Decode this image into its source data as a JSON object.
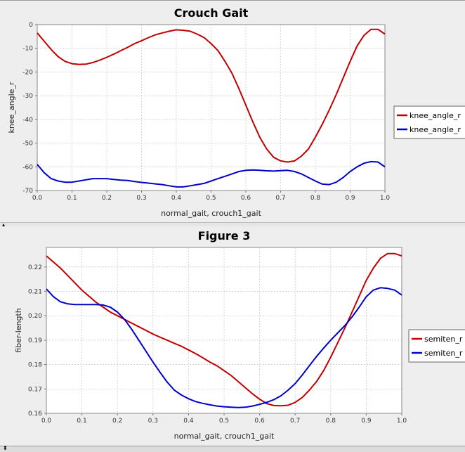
{
  "charts": [
    {
      "chart_data": {
        "type": "line",
        "title": "Crouch Gait",
        "xlabel": "normal_gait, crouch1_gait",
        "ylabel": "knee_angle_r",
        "xlim": [
          0,
          1.0
        ],
        "ylim": [
          -70,
          0
        ],
        "x_ticks": [
          "0.0",
          "0.1",
          "0.2",
          "0.3",
          "0.4",
          "0.5",
          "0.6",
          "0.7",
          "0.8",
          "0.9",
          "1.0"
        ],
        "y_ticks": [
          "0",
          "-10",
          "-20",
          "-30",
          "-40",
          "-50",
          "-60",
          "-70"
        ],
        "grid": true,
        "legend_position": "right",
        "legend": [
          "knee_angle_r",
          "knee_angle_r"
        ],
        "series": [
          {
            "name": "knee_angle_r",
            "color": "#c00000",
            "x": [
              0,
              0.02,
              0.04,
              0.06,
              0.08,
              0.1,
              0.12,
              0.14,
              0.16,
              0.18,
              0.2,
              0.22,
              0.24,
              0.26,
              0.28,
              0.3,
              0.32,
              0.34,
              0.36,
              0.38,
              0.4,
              0.42,
              0.44,
              0.46,
              0.48,
              0.5,
              0.52,
              0.54,
              0.56,
              0.58,
              0.6,
              0.62,
              0.64,
              0.66,
              0.68,
              0.7,
              0.72,
              0.74,
              0.76,
              0.78,
              0.8,
              0.82,
              0.84,
              0.86,
              0.88,
              0.9,
              0.92,
              0.94,
              0.96,
              0.98,
              1.0
            ],
            "y": [
              -3.5,
              -7,
              -10.5,
              -13.5,
              -15.5,
              -16.5,
              -16.8,
              -16.7,
              -16,
              -15,
              -13.8,
              -12.5,
              -11,
              -9.6,
              -8,
              -6.8,
              -5.5,
              -4.3,
              -3.5,
              -2.8,
              -2.2,
              -2.4,
              -2.8,
              -4,
              -5.5,
              -8,
              -11,
              -15.5,
              -20.5,
              -27,
              -34,
              -41,
              -47.5,
              -52.5,
              -56,
              -57.5,
              -58,
              -57.5,
              -55.5,
              -52.5,
              -47.5,
              -42,
              -36,
              -29.5,
              -22.5,
              -15.5,
              -9,
              -4.5,
              -2,
              -2,
              -4
            ]
          },
          {
            "name": "knee_angle_r",
            "color": "#0000c8",
            "x": [
              0,
              0.02,
              0.04,
              0.06,
              0.08,
              0.1,
              0.12,
              0.14,
              0.16,
              0.18,
              0.2,
              0.22,
              0.24,
              0.26,
              0.28,
              0.3,
              0.32,
              0.34,
              0.36,
              0.38,
              0.4,
              0.42,
              0.44,
              0.46,
              0.48,
              0.5,
              0.52,
              0.54,
              0.56,
              0.58,
              0.6,
              0.62,
              0.64,
              0.66,
              0.68,
              0.7,
              0.72,
              0.74,
              0.76,
              0.78,
              0.8,
              0.82,
              0.84,
              0.86,
              0.88,
              0.9,
              0.92,
              0.94,
              0.96,
              0.98,
              1.0
            ],
            "y": [
              -59,
              -62.5,
              -65,
              -66,
              -66.5,
              -66.5,
              -66,
              -65.5,
              -65,
              -65,
              -65,
              -65.3,
              -65.6,
              -65.8,
              -66.2,
              -66.6,
              -66.9,
              -67.2,
              -67.5,
              -68,
              -68.5,
              -68.5,
              -68,
              -67.5,
              -67,
              -66,
              -65,
              -64,
              -63,
              -62,
              -61.5,
              -61.3,
              -61.5,
              -61.7,
              -61.8,
              -61.6,
              -61.5,
              -62,
              -63,
              -64.5,
              -66,
              -67.3,
              -67.5,
              -66.5,
              -64.5,
              -62,
              -60,
              -58.5,
              -57.8,
              -58,
              -60
            ]
          }
        ]
      }
    },
    {
      "chart_data": {
        "type": "line",
        "title": "Figure 3",
        "xlabel": "normal_gait, crouch1_gait",
        "ylabel": "fiber-length",
        "xlim": [
          0,
          1.0
        ],
        "ylim": [
          0.16,
          0.228
        ],
        "x_ticks": [
          "0.0",
          "0.1",
          "0.2",
          "0.3",
          "0.4",
          "0.5",
          "0.6",
          "0.7",
          "0.8",
          "0.9",
          "1.0"
        ],
        "y_ticks": [
          "0.16",
          "0.17",
          "0.18",
          "0.19",
          "0.20",
          "0.21",
          "0.22"
        ],
        "grid": true,
        "legend_position": "right",
        "legend": [
          "semiten_r",
          "semiten_r"
        ],
        "series": [
          {
            "name": "semiten_r",
            "color": "#c00000",
            "x": [
              0,
              0.02,
              0.04,
              0.06,
              0.08,
              0.1,
              0.12,
              0.14,
              0.16,
              0.18,
              0.2,
              0.22,
              0.24,
              0.26,
              0.28,
              0.3,
              0.32,
              0.34,
              0.36,
              0.38,
              0.4,
              0.42,
              0.44,
              0.46,
              0.48,
              0.5,
              0.52,
              0.54,
              0.56,
              0.58,
              0.6,
              0.62,
              0.64,
              0.66,
              0.68,
              0.7,
              0.72,
              0.74,
              0.76,
              0.78,
              0.8,
              0.82,
              0.84,
              0.86,
              0.88,
              0.9,
              0.92,
              0.94,
              0.96,
              0.98,
              1.0
            ],
            "y": [
              0.2245,
              0.222,
              0.2195,
              0.2165,
              0.2135,
              0.2105,
              0.208,
              0.2055,
              0.2035,
              0.2015,
              0.2,
              0.1985,
              0.197,
              0.1955,
              0.194,
              0.1925,
              0.1912,
              0.19,
              0.1887,
              0.1875,
              0.186,
              0.1845,
              0.1828,
              0.181,
              0.1795,
              0.1775,
              0.1755,
              0.173,
              0.1705,
              0.168,
              0.1658,
              0.164,
              0.1632,
              0.1631,
              0.1633,
              0.1645,
              0.1665,
              0.1695,
              0.173,
              0.1775,
              0.183,
              0.189,
              0.195,
              0.2015,
              0.208,
              0.2145,
              0.2195,
              0.2235,
              0.2255,
              0.2255,
              0.2245
            ]
          },
          {
            "name": "semiten_r",
            "color": "#0000c8",
            "x": [
              0,
              0.02,
              0.04,
              0.06,
              0.08,
              0.1,
              0.12,
              0.14,
              0.16,
              0.18,
              0.2,
              0.22,
              0.24,
              0.26,
              0.28,
              0.3,
              0.32,
              0.34,
              0.36,
              0.38,
              0.4,
              0.42,
              0.44,
              0.46,
              0.48,
              0.5,
              0.52,
              0.54,
              0.56,
              0.58,
              0.6,
              0.62,
              0.64,
              0.66,
              0.68,
              0.7,
              0.72,
              0.74,
              0.76,
              0.78,
              0.8,
              0.82,
              0.84,
              0.86,
              0.88,
              0.9,
              0.92,
              0.94,
              0.96,
              0.98,
              1.0
            ],
            "y": [
              0.211,
              0.2078,
              0.2057,
              0.2049,
              0.2046,
              0.2046,
              0.2046,
              0.2046,
              0.2044,
              0.2035,
              0.2015,
              0.1985,
              0.1945,
              0.19,
              0.1855,
              0.181,
              0.1768,
              0.1728,
              0.1695,
              0.1675,
              0.166,
              0.1648,
              0.1641,
              0.1635,
              0.163,
              0.1627,
              0.1625,
              0.1624,
              0.1625,
              0.163,
              0.1637,
              0.1645,
              0.1656,
              0.1672,
              0.1695,
              0.1722,
              0.1757,
              0.1795,
              0.1833,
              0.1867,
              0.19,
              0.193,
              0.196,
              0.1995,
              0.2035,
              0.2078,
              0.2105,
              0.2115,
              0.2112,
              0.2105,
              0.2085
            ]
          }
        ]
      }
    }
  ]
}
